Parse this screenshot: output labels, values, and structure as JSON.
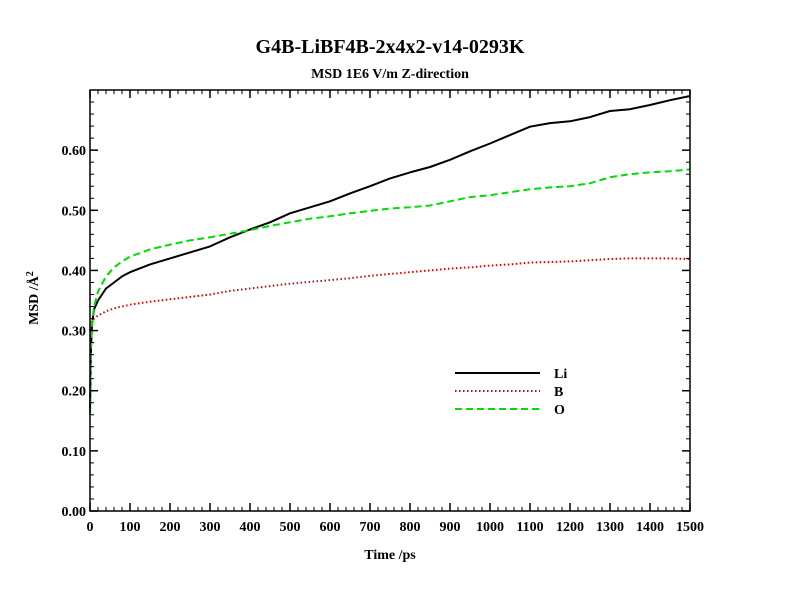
{
  "chart_data": {
    "type": "line",
    "title": "G4B-LiBF4B-2x4x2-v14-0293K",
    "subtitle": "MSD  1E6 V/m Z-direction",
    "xlabel": "Time /ps",
    "ylabel_main": "MSD /Å",
    "ylabel_sup": "2",
    "xlim": [
      0,
      1500
    ],
    "ylim": [
      0,
      0.7
    ],
    "x_ticks": [
      0,
      100,
      200,
      300,
      400,
      500,
      600,
      700,
      800,
      900,
      1000,
      1100,
      1200,
      1300,
      1400,
      1500
    ],
    "x_tick_labels": [
      "0",
      "100",
      "200",
      "300",
      "400",
      "500",
      "600",
      "700",
      "800",
      "900",
      "1000",
      "1100",
      "1200",
      "1300",
      "1400",
      "1500"
    ],
    "y_ticks": [
      0.0,
      0.1,
      0.2,
      0.3,
      0.4,
      0.5,
      0.6
    ],
    "y_tick_labels": [
      "0.00",
      "0.10",
      "0.20",
      "0.30",
      "0.40",
      "0.50",
      "0.60"
    ],
    "grid": false,
    "legend_position": "lower-right",
    "series": [
      {
        "name": "Li",
        "color": "#000000",
        "dash": "solid",
        "x": [
          0,
          2,
          5,
          10,
          20,
          40,
          60,
          80,
          100,
          150,
          200,
          250,
          300,
          350,
          400,
          450,
          500,
          550,
          600,
          650,
          700,
          750,
          800,
          850,
          900,
          950,
          1000,
          1050,
          1100,
          1150,
          1200,
          1250,
          1300,
          1350,
          1400,
          1450,
          1500
        ],
        "y": [
          0.16,
          0.26,
          0.31,
          0.335,
          0.35,
          0.37,
          0.38,
          0.39,
          0.397,
          0.41,
          0.42,
          0.43,
          0.44,
          0.455,
          0.468,
          0.48,
          0.495,
          0.505,
          0.515,
          0.528,
          0.54,
          0.553,
          0.563,
          0.572,
          0.584,
          0.598,
          0.611,
          0.625,
          0.639,
          0.645,
          0.648,
          0.655,
          0.665,
          0.668,
          0.675,
          0.683,
          0.69
        ]
      },
      {
        "name": "B",
        "color": "#dd0000",
        "dash": "dotted",
        "x": [
          0,
          2,
          5,
          10,
          20,
          40,
          60,
          80,
          100,
          150,
          200,
          250,
          300,
          350,
          400,
          450,
          500,
          550,
          600,
          650,
          700,
          750,
          800,
          850,
          900,
          950,
          1000,
          1050,
          1100,
          1150,
          1200,
          1250,
          1300,
          1350,
          1400,
          1450,
          1500
        ],
        "y": [
          0.3,
          0.31,
          0.315,
          0.32,
          0.325,
          0.332,
          0.337,
          0.34,
          0.343,
          0.348,
          0.352,
          0.356,
          0.36,
          0.366,
          0.37,
          0.374,
          0.378,
          0.381,
          0.384,
          0.387,
          0.391,
          0.394,
          0.397,
          0.4,
          0.403,
          0.405,
          0.408,
          0.41,
          0.413,
          0.414,
          0.415,
          0.417,
          0.419,
          0.42,
          0.42,
          0.42,
          0.419
        ]
      },
      {
        "name": "O",
        "color": "#00dd00",
        "dash": "dashed",
        "x": [
          0,
          2,
          5,
          10,
          20,
          40,
          60,
          80,
          100,
          150,
          200,
          250,
          300,
          350,
          400,
          450,
          500,
          550,
          600,
          650,
          700,
          750,
          800,
          850,
          900,
          950,
          1000,
          1050,
          1100,
          1150,
          1200,
          1250,
          1300,
          1350,
          1400,
          1450,
          1500
        ],
        "y": [
          0.16,
          0.27,
          0.31,
          0.34,
          0.365,
          0.39,
          0.405,
          0.415,
          0.423,
          0.435,
          0.443,
          0.45,
          0.455,
          0.461,
          0.467,
          0.474,
          0.48,
          0.486,
          0.49,
          0.495,
          0.499,
          0.503,
          0.505,
          0.508,
          0.515,
          0.522,
          0.525,
          0.53,
          0.535,
          0.538,
          0.54,
          0.545,
          0.555,
          0.56,
          0.563,
          0.565,
          0.568
        ]
      }
    ]
  }
}
